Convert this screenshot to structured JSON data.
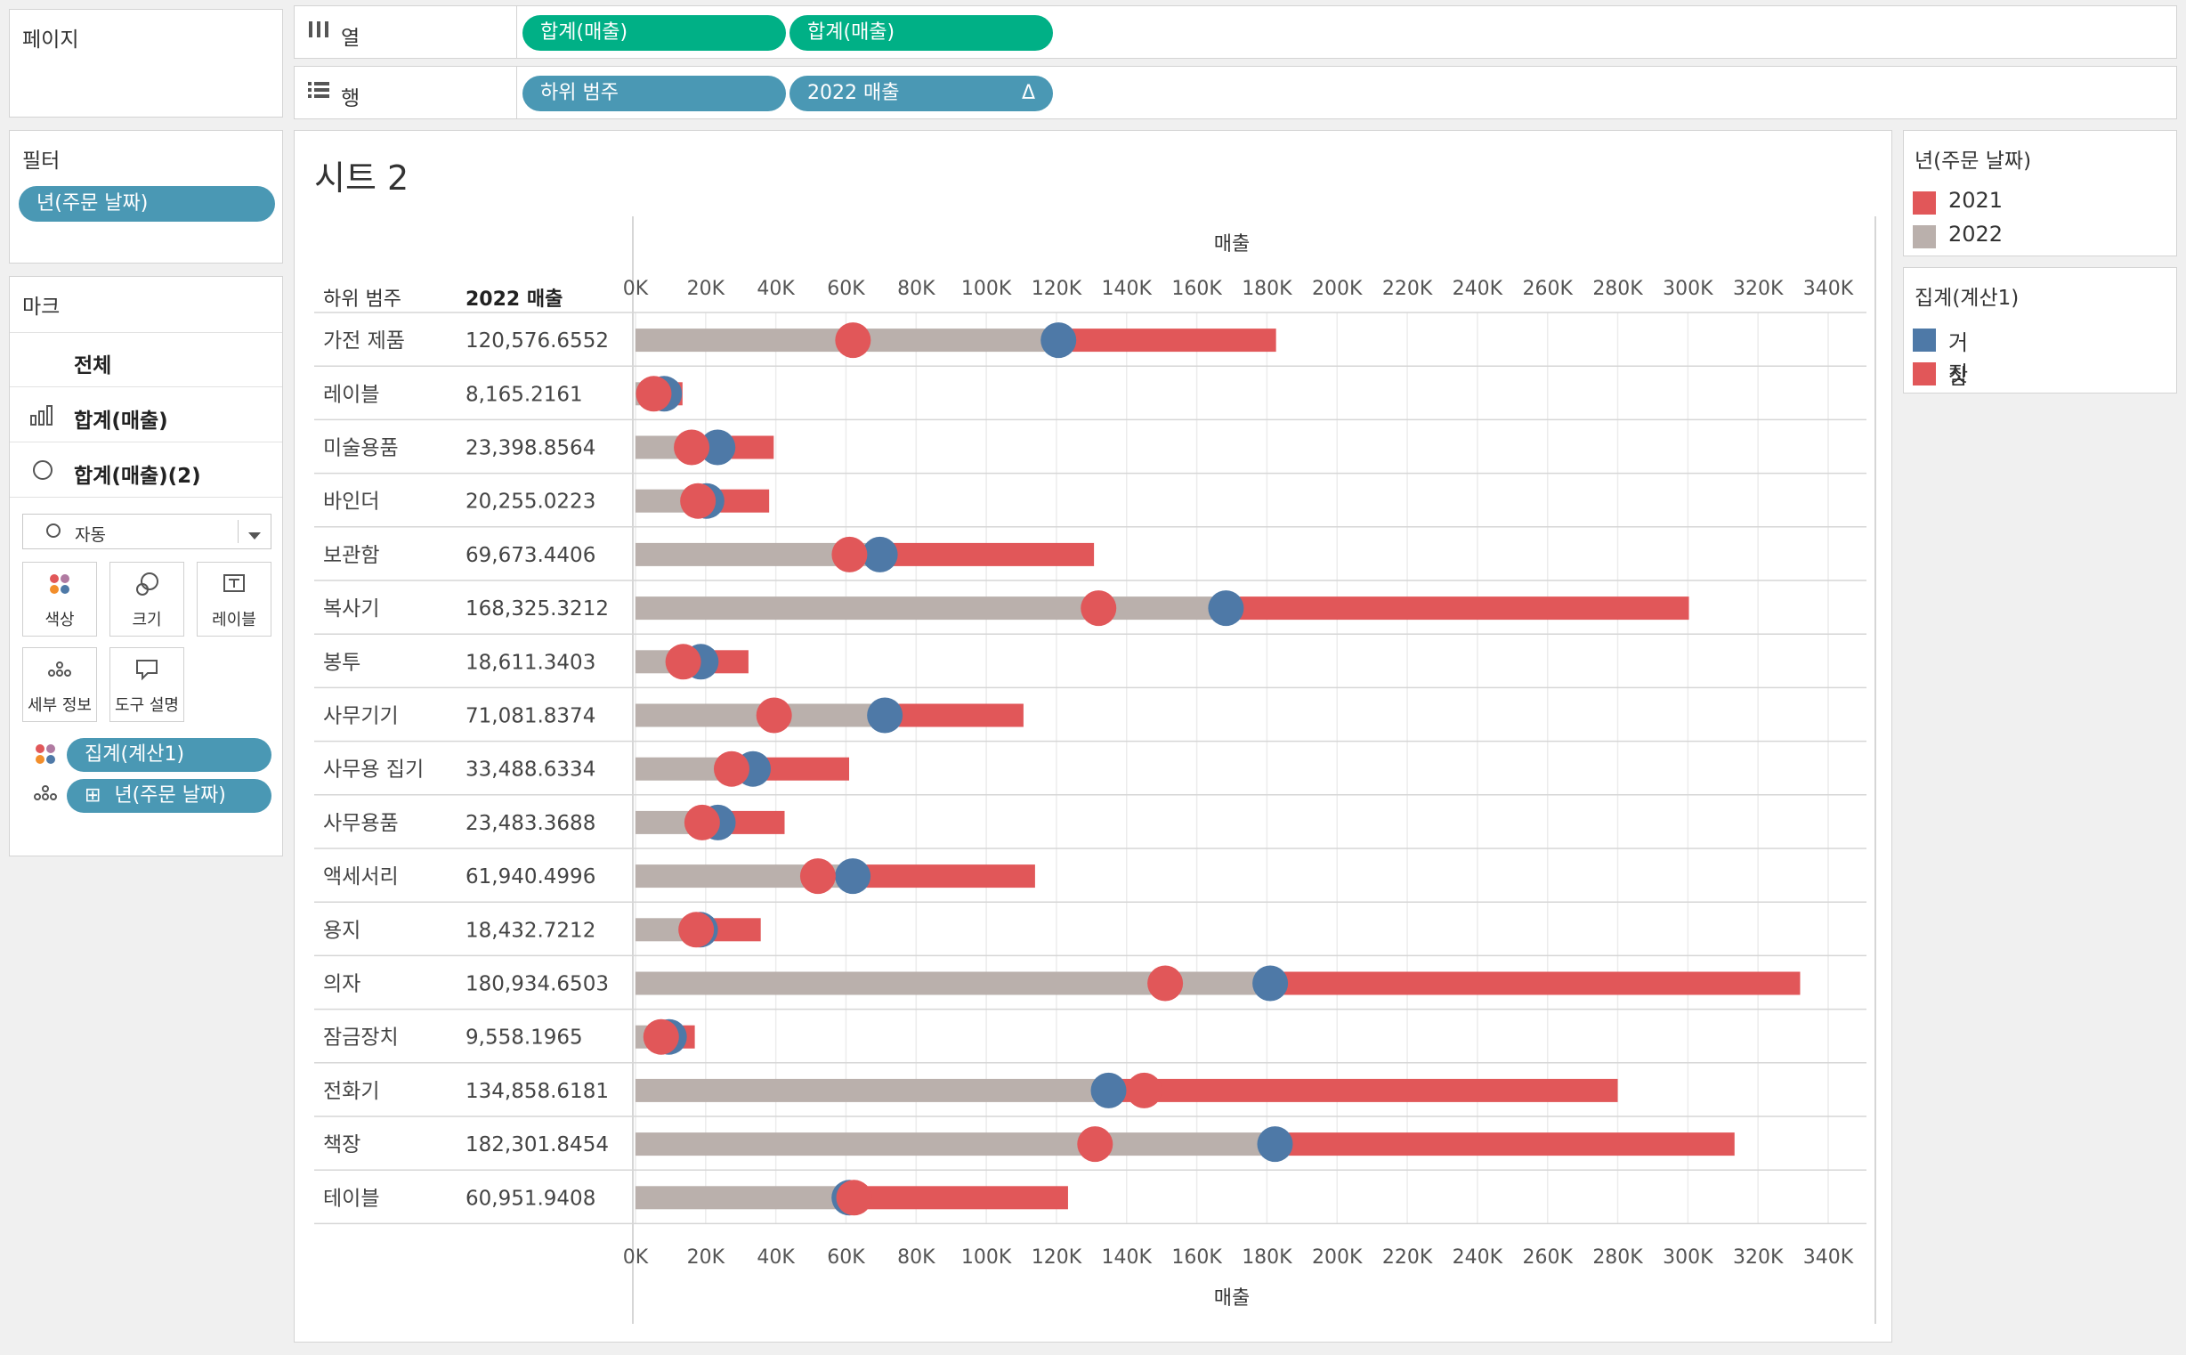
{
  "pages_panel": {
    "title": "페이지"
  },
  "columns_shelf": {
    "label": "열",
    "icon": "columns-icon",
    "pills": [
      "합계(매출)",
      "합계(매출)"
    ]
  },
  "rows_shelf": {
    "label": "행",
    "icon": "rows-icon",
    "pills": [
      "하위 범주",
      "2022 매출"
    ],
    "sort_glyph": "Δ"
  },
  "filters_panel": {
    "title": "필터",
    "pills": [
      "년(주문 날짜)"
    ]
  },
  "marks_panel": {
    "title": "마크",
    "items": [
      {
        "label": "전체"
      },
      {
        "label": "합계(매출)",
        "icon": "bar-chart-icon"
      },
      {
        "label": "합계(매출)(2)",
        "icon": "circle-icon"
      }
    ],
    "mark_type": "자동",
    "buttons": [
      "색상",
      "크기",
      "레이블",
      "세부 정보",
      "도구 설명"
    ],
    "fields": [
      "집계(계산1)",
      "년(주문 날짜)"
    ],
    "field_prefix": "⊞"
  },
  "sheet": {
    "title": "시트 2"
  },
  "legends": [
    {
      "title": "년(주문 날짜)",
      "items": [
        {
          "label": "2021",
          "color": "#e15759"
        },
        {
          "label": "2022",
          "color": "#bab0ac"
        }
      ]
    },
    {
      "title": "집계(계산1)",
      "items": [
        {
          "label": "거짓",
          "color": "#4e79a7"
        },
        {
          "label": "참",
          "color": "#e15759"
        }
      ]
    }
  ],
  "chart_data": {
    "type": "bar",
    "row_header": "하위 범주",
    "value_header": "2022 매출",
    "axis_label": "매출",
    "xlim": [
      0,
      340000
    ],
    "ticks": [
      "0K",
      "20K",
      "40K",
      "60K",
      "80K",
      "100K",
      "120K",
      "140K",
      "160K",
      "180K",
      "200K",
      "220K",
      "240K",
      "260K",
      "280K",
      "300K",
      "320K",
      "340K"
    ],
    "tick_values": [
      0,
      20000,
      40000,
      60000,
      80000,
      100000,
      120000,
      140000,
      160000,
      180000,
      200000,
      220000,
      240000,
      260000,
      280000,
      300000,
      320000,
      340000
    ],
    "colors": {
      "bar_2022": "#bab0ac",
      "bar_2021": "#e15759",
      "dot_2021": "#e15759",
      "dot_2022": "#4e79a7"
    },
    "rows": [
      {
        "category": "가전 제품",
        "value_label": "120,576.6552",
        "v2022": 120577,
        "v2021": 62000,
        "total": 182600
      },
      {
        "category": "레이블",
        "value_label": "8,165.2161",
        "v2022": 8165,
        "v2021": 5200,
        "total": 13400
      },
      {
        "category": "미술용품",
        "value_label": "23,398.8564",
        "v2022": 23399,
        "v2021": 16000,
        "total": 39400
      },
      {
        "category": "바인더",
        "value_label": "20,255.0223",
        "v2022": 20255,
        "v2021": 17800,
        "total": 38100
      },
      {
        "category": "보관함",
        "value_label": "69,673.4406",
        "v2022": 69673,
        "v2021": 61000,
        "total": 130700
      },
      {
        "category": "복사기",
        "value_label": "168,325.3212",
        "v2022": 168325,
        "v2021": 132000,
        "total": 300300
      },
      {
        "category": "봉투",
        "value_label": "18,611.3403",
        "v2022": 18611,
        "v2021": 13600,
        "total": 32200
      },
      {
        "category": "사무기기",
        "value_label": "71,081.8374",
        "v2022": 71082,
        "v2021": 39500,
        "total": 110600
      },
      {
        "category": "사무용 집기",
        "value_label": "33,488.6334",
        "v2022": 33489,
        "v2021": 27400,
        "total": 60900
      },
      {
        "category": "사무용품",
        "value_label": "23,483.3688",
        "v2022": 23483,
        "v2021": 19000,
        "total": 42500
      },
      {
        "category": "액세서리",
        "value_label": "61,940.4996",
        "v2022": 61940,
        "v2021": 52000,
        "total": 113900
      },
      {
        "category": "용지",
        "value_label": "18,432.7212",
        "v2022": 18433,
        "v2021": 17300,
        "total": 35700
      },
      {
        "category": "의자",
        "value_label": "180,934.6503",
        "v2022": 180935,
        "v2021": 151000,
        "total": 332000
      },
      {
        "category": "잠금장치",
        "value_label": "9,558.1965",
        "v2022": 9558,
        "v2021": 7300,
        "total": 16900
      },
      {
        "category": "전화기",
        "value_label": "134,858.6181",
        "v2022": 134859,
        "v2021": 145000,
        "total": 280000
      },
      {
        "category": "책장",
        "value_label": "182,301.8454",
        "v2022": 182302,
        "v2021": 131000,
        "total": 313300
      },
      {
        "category": "테이블",
        "value_label": "60,951.9408",
        "v2022": 60952,
        "v2021": 62300,
        "total": 123300
      }
    ]
  }
}
